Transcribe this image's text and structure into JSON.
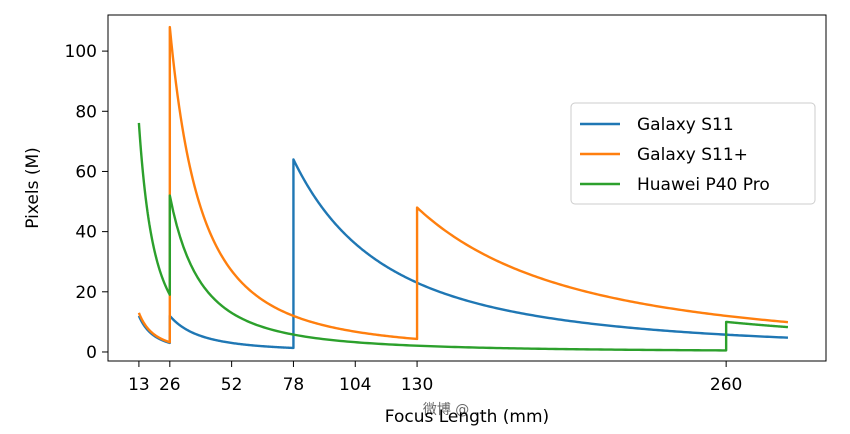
{
  "chart_data": {
    "type": "line",
    "title": "",
    "xlabel": "Focus Length (mm)",
    "ylabel": "Pixels (M)",
    "xlim": [
      0,
      302
    ],
    "ylim": [
      -3,
      112
    ],
    "xticks": [
      13,
      26,
      52,
      78,
      104,
      130,
      260
    ],
    "yticks": [
      0,
      20,
      40,
      60,
      80,
      100
    ],
    "grid": false,
    "legend_position": "center-right",
    "watermark": "微博 @ ...",
    "series": [
      {
        "name": "Galaxy S11",
        "color": "#1f77b4",
        "segments": [
          {
            "x_start": 13,
            "x_end": 26,
            "base_focal": 13,
            "base_mp": 12
          },
          {
            "x_start": 26,
            "x_end": 78,
            "base_focal": 26,
            "base_mp": 12
          },
          {
            "x_start": 78,
            "x_end": 130,
            "base_focal": 78,
            "base_mp": 64
          },
          {
            "x_start": 130,
            "x_end": 286,
            "base_focal": 130,
            "base_mp": 23
          }
        ]
      },
      {
        "name": "Galaxy S11+",
        "color": "#ff7f0e",
        "segments": [
          {
            "x_start": 13,
            "x_end": 26,
            "base_focal": 13,
            "base_mp": 13
          },
          {
            "x_start": 26,
            "x_end": 130,
            "base_focal": 26,
            "base_mp": 108
          },
          {
            "x_start": 130,
            "x_end": 286,
            "base_focal": 130,
            "base_mp": 48
          }
        ]
      },
      {
        "name": "Huawei P40 Pro",
        "color": "#2ca02c",
        "segments": [
          {
            "x_start": 13,
            "x_end": 17.5,
            "base_focal": 17.5,
            "base_mp": 42
          },
          {
            "x_start": 17.5,
            "x_end": 26,
            "base_focal": 17.5,
            "base_mp": 42
          },
          {
            "x_start": 26,
            "x_end": 260,
            "base_focal": 26,
            "base_mp": 52
          },
          {
            "x_start": 260,
            "x_end": 286,
            "base_focal": 260,
            "base_mp": 10
          }
        ]
      }
    ]
  }
}
